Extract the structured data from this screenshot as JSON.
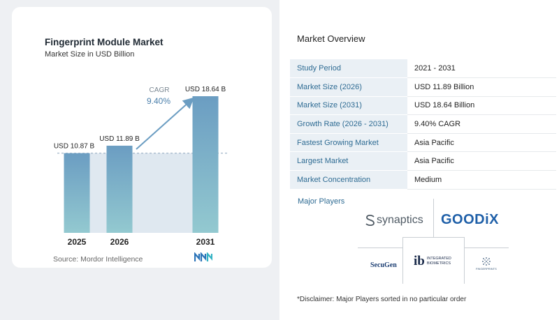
{
  "chart_data": {
    "type": "bar",
    "title": "Fingerprint Module Market",
    "subtitle": "Market Size in USD Billion",
    "categories": [
      "2025",
      "2026",
      "2031"
    ],
    "values": [
      10.87,
      11.89,
      18.64
    ],
    "value_labels": [
      "USD 10.87 B",
      "USD 11.89 B",
      "USD 18.64 B"
    ],
    "cagr_label": "CAGR",
    "cagr_value": "9.40%",
    "reference_line": 10.87,
    "grid": false,
    "colors": {
      "bar_top": "#6b9dc2",
      "bar_bottom": "#93c9d0",
      "band": "#dfe8f0",
      "arrow": "#6b9dc2"
    }
  },
  "source": "Source:  Mordor Intelligence",
  "overview": {
    "title": "Market Overview",
    "rows": [
      {
        "key": "Study Period",
        "value": "2021 - 2031"
      },
      {
        "key": "Market Size (2026)",
        "value": "USD 11.89 Billion"
      },
      {
        "key": "Market Size (2031)",
        "value": "USD 18.64 Billion"
      },
      {
        "key": "Growth Rate (2026 - 2031)",
        "value": "9.40% CAGR"
      },
      {
        "key": "Fastest Growing Market",
        "value": "Asia Pacific"
      },
      {
        "key": "Largest Market",
        "value": "Asia Pacific"
      },
      {
        "key": "Market Concentration",
        "value": "Medium"
      }
    ]
  },
  "players": {
    "title": "Major Players",
    "logos": {
      "synaptics": "synaptics",
      "goodix": "GOODiX",
      "secugen": "SecuGen",
      "ib_mark": "ib",
      "ib_text_1": "INTEGRATED",
      "ib_text_2": "BIOMETRICS",
      "fpc": "FINGERPRINTS"
    }
  },
  "disclaimer": "*Disclaimer: Major Players sorted in no particular order"
}
